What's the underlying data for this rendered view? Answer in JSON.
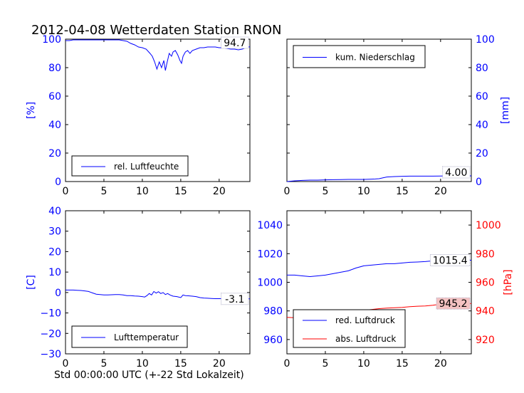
{
  "title": "2012-04-08 Wetterdaten Station RNON",
  "xlabel_bottom": "Std 00:00:00 UTC (+-22 Std Lokalzeit)",
  "colors": {
    "axis_left": "#0000ff",
    "axis_right_pressure": "#ff0000",
    "value_box_pink": "#f4c2c2"
  },
  "chart_data": [
    {
      "type": "line",
      "panel": "top-left",
      "ylabel": "[%]",
      "xlim": [
        0,
        24
      ],
      "ylim": [
        0,
        100
      ],
      "xticks": [
        "0",
        "5",
        "10",
        "15",
        "20"
      ],
      "yticks": [
        "0",
        "20",
        "40",
        "60",
        "80",
        "100"
      ],
      "legend": "bottom-left",
      "current_value": "94.7",
      "series": [
        {
          "name": "rel. Luftfeuchte",
          "color": "#0000ff",
          "x": [
            0,
            0.5,
            1,
            2,
            3,
            4,
            5,
            6,
            7,
            7.5,
            8,
            8.5,
            9,
            9.5,
            10,
            10.5,
            11,
            11.3,
            11.6,
            11.9,
            12.2,
            12.5,
            12.8,
            13,
            13.2,
            13.5,
            13.8,
            14,
            14.3,
            14.6,
            14.9,
            15.1,
            15.3,
            15.6,
            15.9,
            16.2,
            16.5,
            17,
            17.5,
            18,
            18.5,
            19,
            19.5,
            20,
            20.5,
            21,
            21.5,
            22,
            22.5,
            23,
            23.5,
            24
          ],
          "y": [
            99,
            99,
            99.5,
            99.5,
            99.5,
            99.5,
            99.5,
            99.5,
            99.5,
            99,
            98.5,
            97,
            96,
            94.5,
            94,
            93,
            90,
            88,
            84,
            79,
            84,
            80,
            85,
            78,
            83,
            90,
            88,
            91,
            92,
            89,
            85,
            83,
            88,
            91,
            92,
            90,
            92,
            93,
            94,
            94,
            94.5,
            94.5,
            94.5,
            94,
            94,
            93.5,
            93,
            93,
            92.5,
            93,
            94,
            94.7
          ]
        }
      ]
    },
    {
      "type": "line",
      "panel": "top-right",
      "ylabel": "[mm]",
      "xlim": [
        0,
        24
      ],
      "ylim": [
        0,
        100
      ],
      "xticks": [
        "0",
        "5",
        "10",
        "15",
        "20"
      ],
      "yticks": [
        "0",
        "20",
        "40",
        "60",
        "80",
        "100"
      ],
      "legend": "top-left",
      "current_value": "4.00",
      "series": [
        {
          "name": "kum. Niederschlag",
          "color": "#0000ff",
          "x": [
            0,
            1,
            2,
            3,
            4,
            5,
            6,
            7,
            8,
            9,
            10,
            11,
            11.5,
            12,
            12.5,
            13,
            14,
            15,
            16,
            17,
            18,
            19,
            20,
            21,
            22,
            23,
            24
          ],
          "y": [
            0,
            0.5,
            0.8,
            1,
            1,
            1.2,
            1.3,
            1.4,
            1.5,
            1.5,
            1.5,
            1.7,
            1.8,
            2,
            2.6,
            3.2,
            3.5,
            3.7,
            3.8,
            3.8,
            3.8,
            3.8,
            3.9,
            4,
            4,
            4,
            4
          ]
        }
      ]
    },
    {
      "type": "line",
      "panel": "bottom-left",
      "ylabel": "[C]",
      "xlim": [
        0,
        24
      ],
      "ylim": [
        -30,
        40
      ],
      "xticks": [
        "0",
        "5",
        "10",
        "15",
        "20"
      ],
      "yticks": [
        "−30",
        "−20",
        "−10",
        "0",
        "10",
        "20",
        "30",
        "40"
      ],
      "legend": "bottom-left",
      "current_value": "-3.1",
      "series": [
        {
          "name": "Lufttemperatur",
          "color": "#0000ff",
          "x": [
            0,
            0.5,
            1,
            1.5,
            2,
            2.5,
            3,
            3.5,
            4,
            4.5,
            5,
            5.5,
            6,
            6.5,
            7,
            7.5,
            8,
            8.5,
            9,
            9.5,
            10,
            10.3,
            10.6,
            10.9,
            11.2,
            11.5,
            11.8,
            12.1,
            12.4,
            12.7,
            13,
            13.3,
            13.6,
            14,
            14.5,
            15,
            15.3,
            15.6,
            16,
            16.5,
            17,
            17.5,
            18,
            18.5,
            19,
            19.5,
            20,
            20.5,
            21,
            21.5,
            22,
            22.5,
            23,
            23.5,
            24
          ],
          "y": [
            1.2,
            1.2,
            1.2,
            1.1,
            1,
            0.8,
            0.5,
            -0.2,
            -0.8,
            -1,
            -1.2,
            -1.2,
            -1.1,
            -1,
            -1,
            -1.2,
            -1.5,
            -1.5,
            -1.7,
            -1.8,
            -2,
            -2.2,
            -1.5,
            -0.5,
            -1.2,
            0.5,
            -0.3,
            0.4,
            -0.5,
            0,
            -1,
            -0.5,
            -1.2,
            -1.8,
            -2,
            -2.5,
            -1.2,
            -1.5,
            -1.6,
            -1.8,
            -2,
            -2.5,
            -2.7,
            -2.8,
            -2.9,
            -3,
            -3,
            -3,
            -3,
            -3,
            -3.1,
            -3.1,
            -3.1,
            -3.1,
            -3.1
          ]
        }
      ]
    },
    {
      "type": "line",
      "panel": "bottom-right",
      "ylabel_right": "[hPa]",
      "xlim": [
        0,
        24
      ],
      "ylim_left": [
        950,
        1050
      ],
      "ylim_right": [
        910,
        1010
      ],
      "xticks": [
        "0",
        "5",
        "10",
        "15",
        "20"
      ],
      "yticks_left": [
        "960",
        "980",
        "1000",
        "1020",
        "1040"
      ],
      "yticks_right": [
        "920",
        "940",
        "960",
        "980",
        "1000"
      ],
      "legend": "bottom-left",
      "current_values": [
        "1015.4",
        "945.2"
      ],
      "series": [
        {
          "name": "red. Luftdruck",
          "color": "#0000ff",
          "axis": "left",
          "x": [
            0,
            1,
            2,
            3,
            4,
            5,
            6,
            7,
            8,
            9,
            10,
            11,
            12,
            13,
            14,
            15,
            16,
            17,
            18,
            19,
            20,
            21,
            22,
            23,
            24
          ],
          "y": [
            1005,
            1005,
            1004.5,
            1004,
            1004.5,
            1005,
            1006,
            1007,
            1008,
            1010,
            1011.5,
            1012,
            1012.5,
            1013,
            1013,
            1013.5,
            1014,
            1014.2,
            1014.5,
            1015,
            1016,
            1015.8,
            1015.6,
            1015.5,
            1015.4
          ]
        },
        {
          "name": "abs. Luftdruck",
          "color": "#ff0000",
          "axis": "right",
          "x": [
            0,
            1,
            2,
            3,
            4,
            5,
            6,
            7,
            8,
            9,
            10,
            11,
            12,
            13,
            14,
            15,
            16,
            17,
            18,
            19,
            20,
            21,
            22,
            23,
            24
          ],
          "y": [
            935.5,
            935.2,
            934.8,
            934.5,
            934.6,
            935,
            935.7,
            936.5,
            937.5,
            939,
            940.5,
            941,
            941.6,
            942,
            942.2,
            942.5,
            943,
            943.3,
            943.5,
            944,
            944.8,
            945,
            945.1,
            945.2,
            945.2
          ]
        }
      ]
    }
  ]
}
